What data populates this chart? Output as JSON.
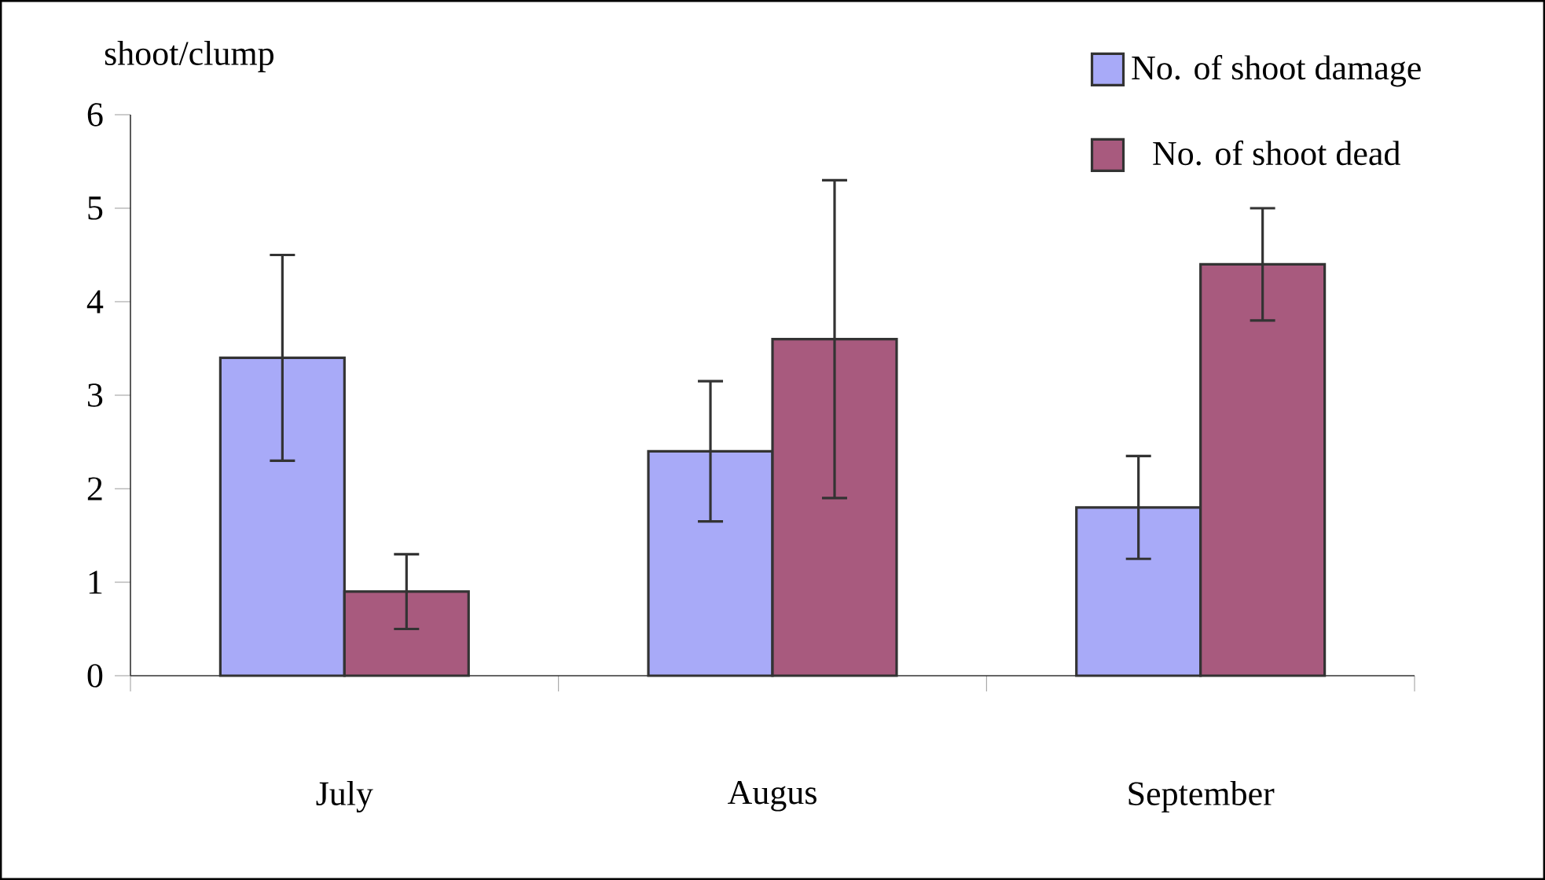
{
  "chart_data": {
    "type": "bar",
    "ylabel": "shoot/clump",
    "categories": [
      "July",
      "Augus",
      "September"
    ],
    "series": [
      {
        "name": "No. of shoot damage",
        "color": "#a8aaf8",
        "values": [
          3.4,
          2.4,
          1.8
        ],
        "errors": [
          1.1,
          0.75,
          0.55
        ]
      },
      {
        "name": "No. of shoot dead",
        "color": "#a85a7e",
        "values": [
          0.9,
          3.6,
          4.4
        ],
        "errors": [
          0.4,
          1.7,
          0.6
        ]
      }
    ],
    "ylim": [
      0,
      6
    ],
    "yticks": [
      0,
      1,
      2,
      3,
      4,
      5,
      6
    ],
    "legend": "top right"
  }
}
